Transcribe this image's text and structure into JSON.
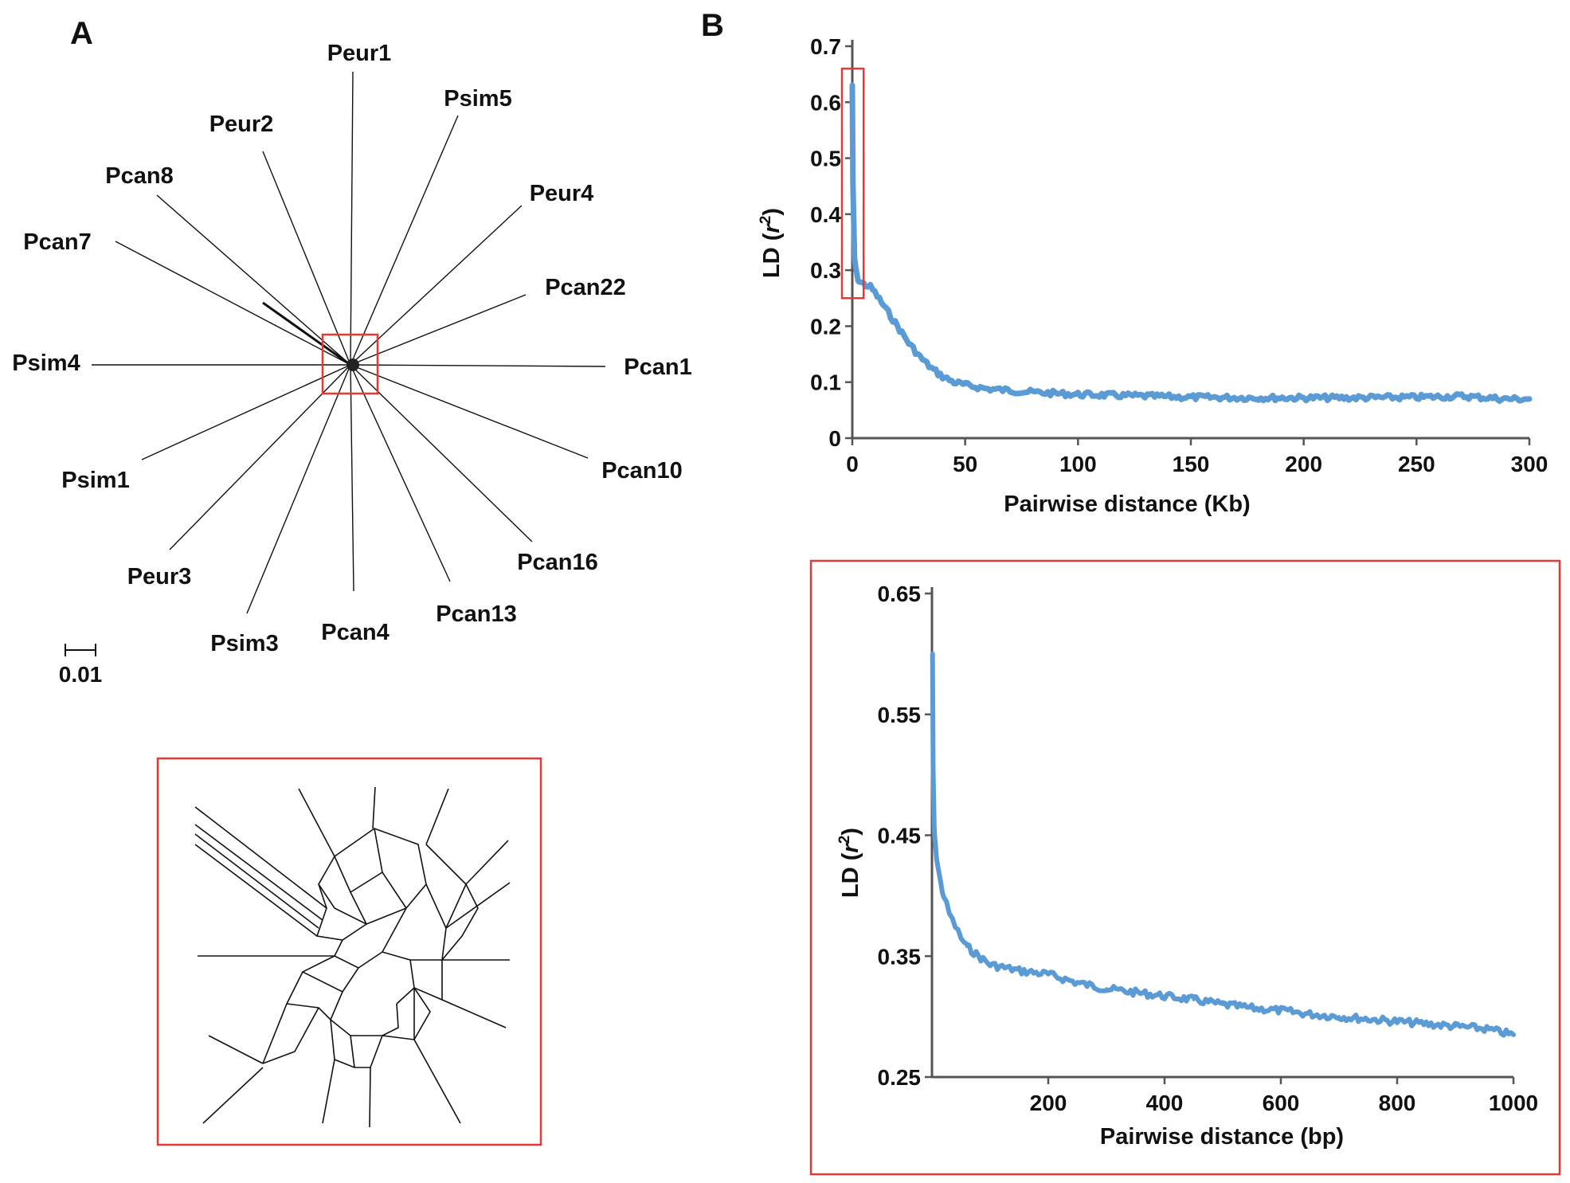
{
  "figure": {
    "panel_a_label": "A",
    "panel_b_label": "B"
  },
  "network": {
    "taxa": [
      {
        "id": "peur1",
        "label": "Peur1"
      },
      {
        "id": "psim5",
        "label": "Psim5"
      },
      {
        "id": "peur2",
        "label": "Peur2"
      },
      {
        "id": "peur4",
        "label": "Peur4"
      },
      {
        "id": "pcan8",
        "label": "Pcan8"
      },
      {
        "id": "pcan7",
        "label": "Pcan7"
      },
      {
        "id": "pcan22",
        "label": "Pcan22"
      },
      {
        "id": "psim4",
        "label": "Psim4"
      },
      {
        "id": "pcan1",
        "label": "Pcan1"
      },
      {
        "id": "pcan10",
        "label": "Pcan10"
      },
      {
        "id": "psim1",
        "label": "Psim1"
      },
      {
        "id": "pcan16",
        "label": "Pcan16"
      },
      {
        "id": "peur3",
        "label": "Peur3"
      },
      {
        "id": "pcan13",
        "label": "Pcan13"
      },
      {
        "id": "psim3",
        "label": "Psim3"
      },
      {
        "id": "pcan4",
        "label": "Pcan4"
      }
    ],
    "scale_bar_label": "0.01",
    "inset_frame_color": "#e53935"
  },
  "chart_data": [
    {
      "type": "line",
      "title": "",
      "xlabel": "Pairwise distance (Kb)",
      "ylabel_main": "LD (",
      "ylabel_var": "r",
      "ylabel_sup": "2",
      "ylabel_close": ")",
      "xlim": [
        0,
        300
      ],
      "ylim": [
        0,
        0.7
      ],
      "x_ticks": [
        0,
        50,
        100,
        150,
        200,
        250,
        300
      ],
      "x_tick_labels": [
        "0",
        "50",
        "100",
        "150",
        "200",
        "250",
        "300"
      ],
      "y_ticks": [
        0,
        0.1,
        0.2,
        0.3,
        0.4,
        0.5,
        0.6,
        0.7
      ],
      "y_tick_labels": [
        "0",
        "0.1",
        "0.2",
        "0.3",
        "0.4",
        "0.5",
        "0.6",
        "0.7"
      ],
      "grid": false,
      "series": [
        {
          "name": "LD decay",
          "color": "#5b9bd5",
          "x": [
            0,
            0.3,
            1,
            2,
            3,
            5,
            8,
            10,
            15,
            20,
            25,
            30,
            35,
            40,
            45,
            50,
            60,
            70,
            80,
            90,
            100,
            120,
            150,
            180,
            200,
            220,
            250,
            270,
            290,
            300
          ],
          "y": [
            0.63,
            0.45,
            0.32,
            0.29,
            0.28,
            0.275,
            0.27,
            0.26,
            0.23,
            0.2,
            0.17,
            0.145,
            0.125,
            0.11,
            0.1,
            0.095,
            0.088,
            0.085,
            0.082,
            0.08,
            0.078,
            0.076,
            0.073,
            0.072,
            0.072,
            0.072,
            0.073,
            0.075,
            0.07,
            0.07
          ]
        }
      ],
      "highlight_region": {
        "x": [
          0,
          5
        ],
        "y": [
          0.25,
          0.66
        ],
        "color": "#e53935"
      }
    },
    {
      "type": "line",
      "title": "",
      "xlabel": "Pairwise distance (bp)",
      "ylabel_main": "LD (",
      "ylabel_var": "r",
      "ylabel_sup": "2",
      "ylabel_close": ")",
      "xlim": [
        0,
        1000
      ],
      "ylim": [
        0.25,
        0.65
      ],
      "x_ticks": [
        200,
        400,
        600,
        800,
        1000
      ],
      "x_tick_labels": [
        "200",
        "400",
        "600",
        "800",
        "1000"
      ],
      "y_ticks": [
        0.25,
        0.35,
        0.45,
        0.55,
        0.65
      ],
      "y_tick_labels": [
        "0.25",
        "0.35",
        "0.45",
        "0.55",
        "0.65"
      ],
      "grid": false,
      "series": [
        {
          "name": "LD decay (zoom)",
          "color": "#5b9bd5",
          "x": [
            1,
            2,
            4,
            6,
            10,
            15,
            20,
            30,
            40,
            50,
            60,
            80,
            100,
            150,
            200,
            250,
            300,
            350,
            400,
            450,
            500,
            550,
            600,
            650,
            700,
            750,
            800,
            850,
            900,
            950,
            1000
          ],
          "y": [
            0.6,
            0.5,
            0.455,
            0.44,
            0.425,
            0.41,
            0.4,
            0.385,
            0.375,
            0.365,
            0.358,
            0.35,
            0.343,
            0.338,
            0.335,
            0.328,
            0.323,
            0.32,
            0.317,
            0.314,
            0.31,
            0.307,
            0.305,
            0.302,
            0.3,
            0.298,
            0.296,
            0.294,
            0.292,
            0.29,
            0.285
          ]
        }
      ],
      "inset_frame_color": "#e53935"
    }
  ]
}
